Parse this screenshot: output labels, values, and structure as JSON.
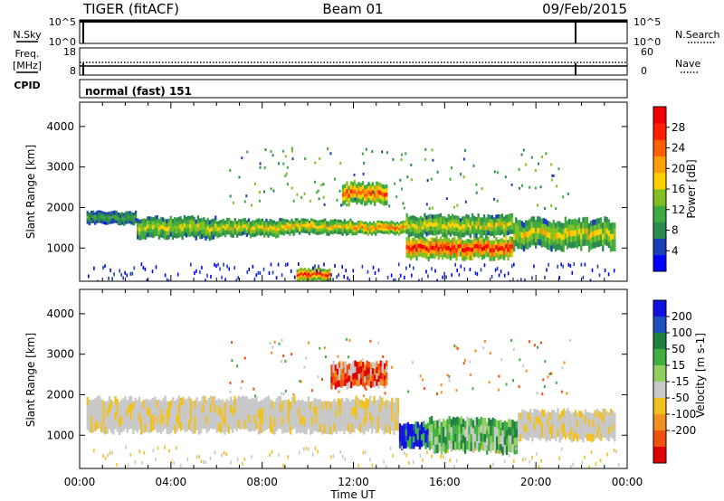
{
  "header": {
    "radar": "TIGER (fitACF)",
    "beam": "Beam 01",
    "date": "09/Feb/2015"
  },
  "strips": {
    "nsky_label": "N.Sky",
    "nsky_ticks": [
      "10^5",
      "10^0"
    ],
    "nsearch_label": "N.Search",
    "nsearch_ticks": [
      "10^5",
      "10^0"
    ],
    "freq_label_1": "Freq.",
    "freq_label_2": "[MHz]",
    "freq_ticks": [
      "18",
      "8"
    ],
    "nave_label": "Nave",
    "nave_ticks": [
      "60",
      "0"
    ],
    "cpid_label": "CPID",
    "cpid_value": "normal (fast) 151"
  },
  "time_axis": {
    "label": "Time UT",
    "ticks": [
      "00:00",
      "04:00",
      "08:00",
      "12:00",
      "16:00",
      "20:00",
      "00:00"
    ]
  },
  "chart_data": [
    {
      "type": "heatmap",
      "quantity": "power",
      "ylabel": "Slant Range [km]",
      "ylim": [
        180,
        4600
      ],
      "yticks": [
        "1000",
        "2000",
        "3000",
        "4000"
      ],
      "xlim_hours": [
        0,
        24
      ],
      "colorbar": {
        "label": "Power [dB]",
        "ticks": [
          "4",
          "8",
          "12",
          "16",
          "20",
          "24",
          "28"
        ],
        "colors": [
          "#0000ff",
          "#1b3fb4",
          "#2c8a4c",
          "#3faa3f",
          "#80c020",
          "#ffd000",
          "#ffa000",
          "#ff6000",
          "#ff2000",
          "#ee0000"
        ]
      },
      "regions": [
        {
          "t": [
            0.3,
            2.5
          ],
          "r": [
            1600,
            1900
          ],
          "level": 0.3
        },
        {
          "t": [
            2.5,
            6.0
          ],
          "r": [
            1250,
            1750
          ],
          "level": 0.5
        },
        {
          "t": [
            6.0,
            9.0
          ],
          "r": [
            1300,
            1700
          ],
          "level": 0.55
        },
        {
          "t": [
            9.0,
            12.0
          ],
          "r": [
            1350,
            1700
          ],
          "level": 0.6
        },
        {
          "t": [
            12.0,
            14.3
          ],
          "r": [
            1350,
            1650
          ],
          "level": 0.75
        },
        {
          "t": [
            14.3,
            19.0
          ],
          "r": [
            750,
            1250
          ],
          "level": 0.95
        },
        {
          "t": [
            14.3,
            19.0
          ],
          "r": [
            1300,
            1800
          ],
          "level": 0.55
        },
        {
          "t": [
            19.0,
            23.5
          ],
          "r": [
            1000,
            1700
          ],
          "level": 0.55
        },
        {
          "t": [
            11.5,
            13.5
          ],
          "r": [
            2100,
            2600
          ],
          "level": 0.8
        },
        {
          "t": [
            9.5,
            11.0
          ],
          "r": [
            200,
            500
          ],
          "level": 0.9
        }
      ]
    },
    {
      "type": "heatmap",
      "quantity": "velocity",
      "ylabel": "Slant Range [km]",
      "ylim": [
        180,
        4600
      ],
      "yticks": [
        "1000",
        "2000",
        "3000",
        "4000"
      ],
      "xlim_hours": [
        0,
        24
      ],
      "colorbar": {
        "label": "Velocity [m s-1]",
        "ticks": [
          "200",
          "100",
          "50",
          "15",
          "-15",
          "-50",
          "-100",
          "-200"
        ],
        "colors": [
          "#1010e0",
          "#2050c0",
          "#208040",
          "#40b040",
          "#90d060",
          "#c8c8c8",
          "#f0c020",
          "#f09020",
          "#f05010",
          "#e00000"
        ]
      },
      "regions": [
        {
          "t": [
            0.3,
            14.0
          ],
          "r": [
            1100,
            1900
          ],
          "class": "ground"
        },
        {
          "t": [
            14.0,
            15.3
          ],
          "r": [
            700,
            1300
          ],
          "class": "positive-high"
        },
        {
          "t": [
            15.3,
            19.2
          ],
          "r": [
            600,
            1400
          ],
          "class": "positive"
        },
        {
          "t": [
            11.0,
            13.5
          ],
          "r": [
            2200,
            2800
          ],
          "class": "negative"
        },
        {
          "t": [
            19.2,
            23.5
          ],
          "r": [
            900,
            1600
          ],
          "class": "ground"
        }
      ]
    }
  ]
}
